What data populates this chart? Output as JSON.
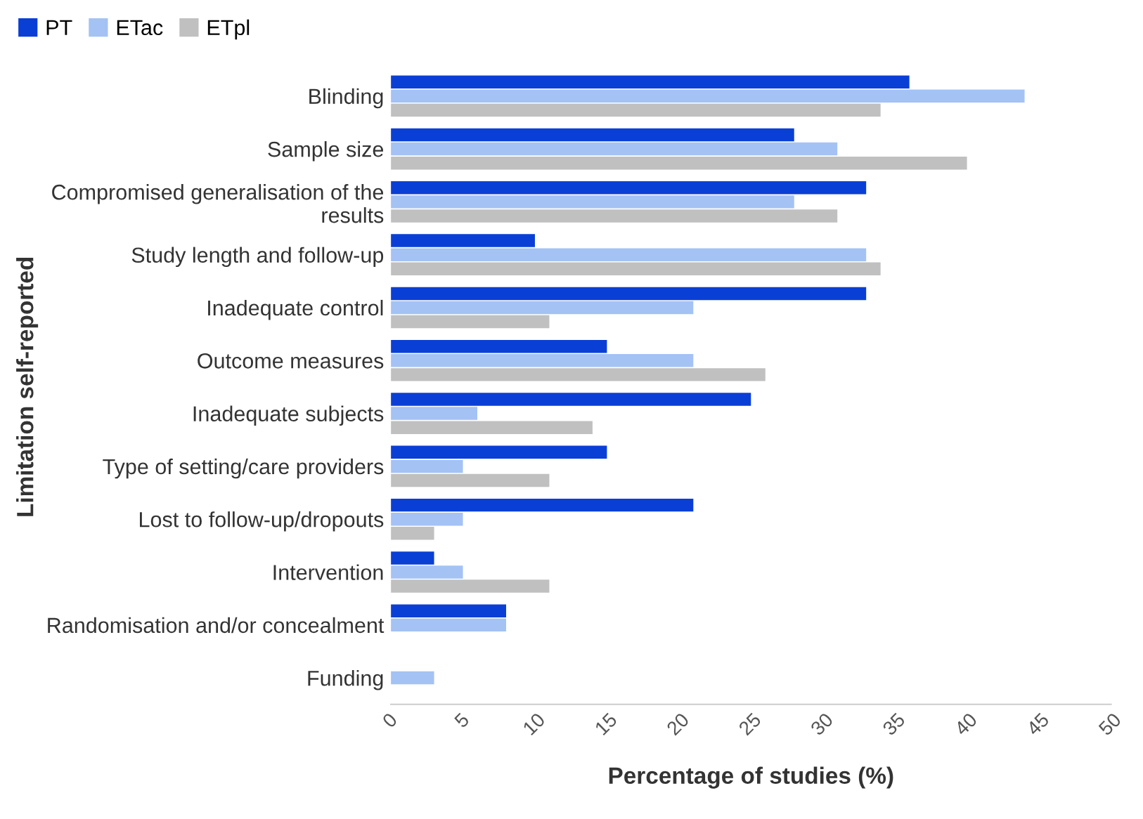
{
  "chart_data": {
    "type": "bar",
    "orientation": "horizontal",
    "xlabel": "Percentage of studies (%)",
    "ylabel": "Limitation self-reported",
    "categories": [
      "Blinding",
      "Sample size",
      "Compromised generalisation of the results",
      "Study length and follow-up",
      "Inadequate control",
      "Outcome measures",
      "Inadequate subjects",
      "Type of setting/care providers",
      "Lost to follow-up/dropouts",
      "Intervention",
      "Randomisation and/or concealment",
      "Funding"
    ],
    "series": [
      {
        "name": "PT",
        "color": "#0a3fd6",
        "values": [
          36,
          28,
          33,
          10,
          33,
          15,
          25,
          15,
          21,
          3,
          8,
          0
        ]
      },
      {
        "name": "ETac",
        "color": "#a4c2f4",
        "values": [
          44,
          31,
          28,
          33,
          21,
          21,
          6,
          5,
          5,
          5,
          8,
          3
        ]
      },
      {
        "name": "ETpl",
        "color": "#c0c0c0",
        "values": [
          34,
          40,
          31,
          34,
          11,
          26,
          14,
          11,
          3,
          11,
          0,
          0
        ]
      }
    ],
    "xlim": [
      0,
      50
    ],
    "xticks": [
      0,
      5,
      10,
      15,
      20,
      25,
      30,
      35,
      40,
      45,
      50
    ],
    "grid": false,
    "legend": "top left"
  }
}
